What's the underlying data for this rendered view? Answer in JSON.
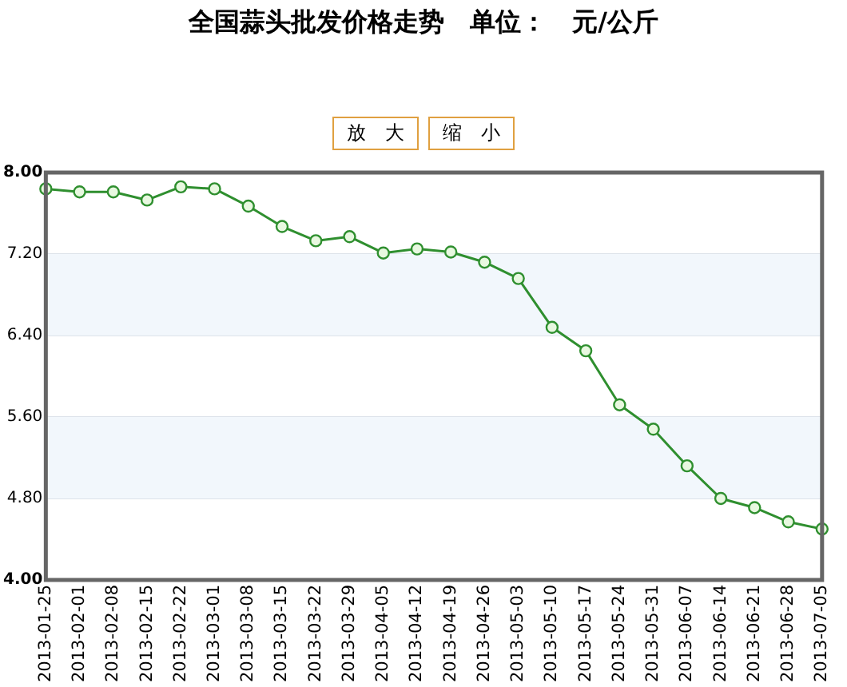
{
  "chart_data": {
    "type": "line",
    "title": "全国蒜头批发价格走势　单位：　元/公斤",
    "annotations": [
      "放　大",
      "缩　小"
    ],
    "categories": [
      "2013-01-25",
      "2013-02-01",
      "2013-02-08",
      "2013-02-15",
      "2013-02-22",
      "2013-03-01",
      "2013-03-08",
      "2013-03-15",
      "2013-03-22",
      "2013-03-29",
      "2013-04-05",
      "2013-04-12",
      "2013-04-19",
      "2013-04-26",
      "2013-05-03",
      "2013-05-10",
      "2013-05-17",
      "2013-05-24",
      "2013-05-31",
      "2013-06-07",
      "2013-06-14",
      "2013-06-21",
      "2013-06-28",
      "2013-07-05"
    ],
    "series": [
      {
        "color": "#2f8f2f",
        "values": [
          7.84,
          7.81,
          7.81,
          7.73,
          7.86,
          7.84,
          7.67,
          7.47,
          7.33,
          7.37,
          7.21,
          7.25,
          7.22,
          7.12,
          6.96,
          6.48,
          6.25,
          5.72,
          5.48,
          5.12,
          4.8,
          4.71,
          4.57,
          4.5
        ]
      }
    ],
    "ylim": [
      4,
      8
    ],
    "yticks": [
      {
        "value": 4,
        "label": "4.00"
      },
      {
        "value": 4.8,
        "label": "4.80"
      },
      {
        "value": 5.6,
        "label": "5.60"
      },
      {
        "value": 6.4,
        "label": "6.40"
      },
      {
        "value": 7.2,
        "label": "7.20"
      },
      {
        "value": 8,
        "label": "8.00"
      }
    ],
    "grid": "y",
    "legend": false,
    "marker": "circle",
    "line_style": "solid"
  }
}
